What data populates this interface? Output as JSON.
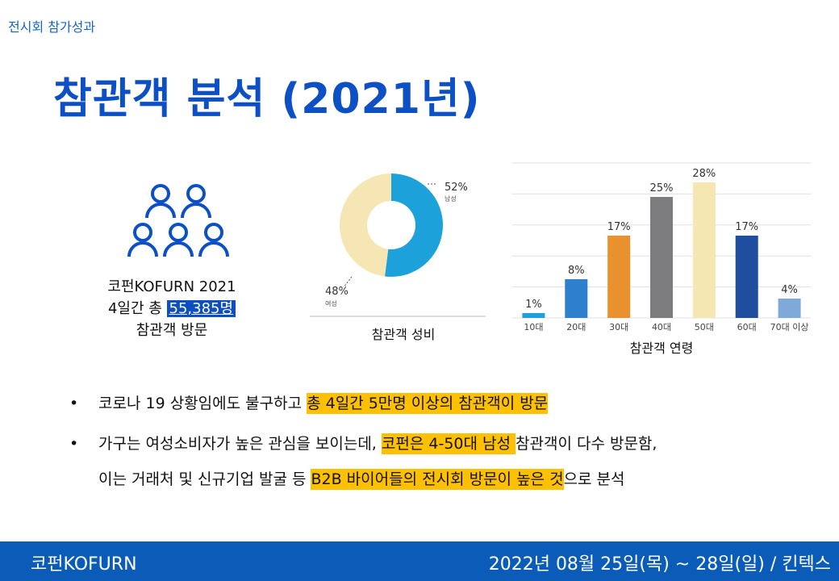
{
  "header": {
    "section_label": "전시회 참가성과",
    "title": "참관객 분석 (2021년)"
  },
  "visitors": {
    "line1": "코펀KOFURN 2021",
    "line2_prefix": "4일간 총 ",
    "count": "55,385명",
    "line3": "참관객 방문",
    "icon": "people-group-icon"
  },
  "chart_data": [
    {
      "type": "pie",
      "title": "참관객 성비",
      "slices": [
        {
          "label": "남성",
          "value": 52,
          "value_label": "52%",
          "color": "#1da1db"
        },
        {
          "label": "여성",
          "value": 48,
          "value_label": "48%",
          "color": "#f5e6b3"
        }
      ]
    },
    {
      "type": "bar",
      "title": "참관객 연령",
      "categories": [
        "10대",
        "20대",
        "30대",
        "40대",
        "50대",
        "60대",
        "70대 이상"
      ],
      "values": [
        1,
        8,
        17,
        25,
        28,
        17,
        4
      ],
      "value_labels": [
        "1%",
        "8%",
        "17%",
        "25%",
        "28%",
        "17%",
        "4%"
      ],
      "colors": [
        "#1ea0da",
        "#2e7fcc",
        "#e8912e",
        "#7d7d80",
        "#f4e7b1",
        "#1f4e9e",
        "#7ea9d8"
      ],
      "ylim": [
        0,
        32
      ],
      "grid": true
    }
  ],
  "bullets": [
    {
      "parts": [
        {
          "text": "코로나 19 상황임에도 불구하고 ",
          "hl": false
        },
        {
          "text": "총 4일간 5만명 이상의 참관객이 방문",
          "hl": true
        }
      ]
    },
    {
      "parts": [
        {
          "text": "가구는 여성소비자가 높은 관심을 보이는데, ",
          "hl": false
        },
        {
          "text": "코펀은 4-50대 남성 ",
          "hl": true
        },
        {
          "text": "참관객이 다수 방문함,",
          "hl": false
        }
      ]
    },
    {
      "parts": [
        {
          "text": "이는 거래처 및 신규기업 발굴 등 ",
          "hl": false
        },
        {
          "text": "B2B 바이어들의 전시회 방문이 높은 것",
          "hl": true
        },
        {
          "text": "으로  분석",
          "hl": false
        }
      ]
    }
  ],
  "bullet_symbol": "•",
  "footer": {
    "left": "코펀KOFURN",
    "right": "2022년 08월 25일(목) ~ 28일(일)  /  킨텍스"
  }
}
